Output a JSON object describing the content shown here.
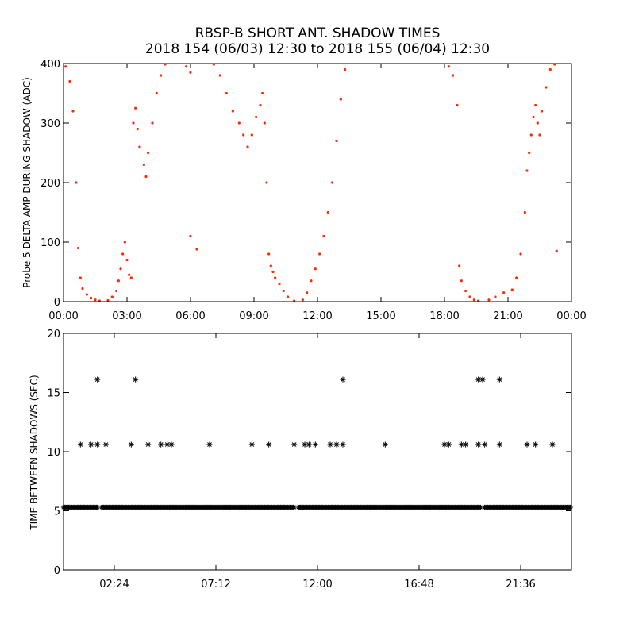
{
  "title": {
    "line1": "RBSP-B SHORT ANT. SHADOW TIMES",
    "line2": "2018 154 (06/03) 12:30 to 2018 155 (06/04) 12:30"
  },
  "colors": {
    "top_points": "#ff2a00",
    "bottom_points": "#000000",
    "axes": "#000000"
  },
  "chart_data": [
    {
      "type": "scatter",
      "title": "",
      "xlabel": "",
      "ylabel": "Probe 5 DELTA AMP DURING SHADOW (ADC)",
      "x_unit": "hours",
      "xlim": [
        0,
        24
      ],
      "ylim": [
        0,
        400
      ],
      "x_ticks": [
        0,
        3,
        6,
        9,
        12,
        15,
        18,
        21,
        24
      ],
      "x_tick_labels": [
        "00:00",
        "03:00",
        "06:00",
        "09:00",
        "12:00",
        "15:00",
        "18:00",
        "21:00",
        "00:00"
      ],
      "y_ticks": [
        0,
        100,
        200,
        300,
        400
      ],
      "y_tick_labels": [
        "0",
        "100",
        "200",
        "300",
        "400"
      ],
      "grid": false,
      "legend": "none",
      "series": [
        {
          "values": [
            [
              0.1,
              395
            ],
            [
              0.3,
              370
            ],
            [
              0.45,
              320
            ],
            [
              0.6,
              200
            ],
            [
              0.7,
              90
            ],
            [
              0.8,
              40
            ],
            [
              0.9,
              22
            ],
            [
              1.1,
              12
            ],
            [
              1.3,
              6
            ],
            [
              1.5,
              3
            ],
            [
              1.7,
              1
            ],
            [
              2.1,
              2
            ],
            [
              2.3,
              8
            ],
            [
              2.5,
              18
            ],
            [
              2.6,
              35
            ],
            [
              2.7,
              55
            ],
            [
              2.8,
              80
            ],
            [
              2.9,
              100
            ],
            [
              3.0,
              70
            ],
            [
              3.1,
              45
            ],
            [
              3.2,
              40
            ],
            [
              3.3,
              300
            ],
            [
              3.4,
              325
            ],
            [
              3.5,
              290
            ],
            [
              3.6,
              260
            ],
            [
              3.8,
              230
            ],
            [
              3.9,
              210
            ],
            [
              4.0,
              250
            ],
            [
              4.2,
              300
            ],
            [
              4.4,
              350
            ],
            [
              4.6,
              380
            ],
            [
              4.8,
              400
            ],
            [
              5.8,
              395
            ],
            [
              6.0,
              385
            ],
            [
              6.0,
              110
            ],
            [
              6.3,
              88
            ],
            [
              7.1,
              400
            ],
            [
              7.4,
              380
            ],
            [
              7.7,
              350
            ],
            [
              8.0,
              320
            ],
            [
              8.3,
              300
            ],
            [
              8.5,
              280
            ],
            [
              8.7,
              260
            ],
            [
              8.9,
              280
            ],
            [
              9.1,
              310
            ],
            [
              9.3,
              330
            ],
            [
              9.4,
              350
            ],
            [
              9.5,
              300
            ],
            [
              9.6,
              200
            ],
            [
              9.7,
              80
            ],
            [
              9.8,
              60
            ],
            [
              9.9,
              50
            ],
            [
              10.0,
              40
            ],
            [
              10.2,
              30
            ],
            [
              10.4,
              18
            ],
            [
              10.6,
              8
            ],
            [
              10.9,
              1
            ],
            [
              11.3,
              3
            ],
            [
              11.5,
              15
            ],
            [
              11.7,
              35
            ],
            [
              11.9,
              55
            ],
            [
              12.1,
              80
            ],
            [
              12.3,
              110
            ],
            [
              12.5,
              150
            ],
            [
              12.7,
              200
            ],
            [
              12.9,
              270
            ],
            [
              13.1,
              340
            ],
            [
              13.3,
              390
            ],
            [
              18.2,
              395
            ],
            [
              18.4,
              380
            ],
            [
              18.6,
              330
            ],
            [
              18.7,
              60
            ],
            [
              18.8,
              35
            ],
            [
              19.0,
              18
            ],
            [
              19.2,
              8
            ],
            [
              19.4,
              3
            ],
            [
              19.6,
              0
            ],
            [
              20.1,
              3
            ],
            [
              20.4,
              8
            ],
            [
              20.8,
              15
            ],
            [
              21.2,
              20
            ],
            [
              21.4,
              40
            ],
            [
              21.6,
              80
            ],
            [
              21.8,
              150
            ],
            [
              21.9,
              220
            ],
            [
              22.0,
              250
            ],
            [
              22.1,
              280
            ],
            [
              22.2,
              310
            ],
            [
              22.3,
              330
            ],
            [
              22.4,
              300
            ],
            [
              22.5,
              280
            ],
            [
              22.6,
              320
            ],
            [
              22.8,
              360
            ],
            [
              23.0,
              390
            ],
            [
              23.2,
              400
            ],
            [
              23.3,
              85
            ]
          ]
        }
      ]
    },
    {
      "type": "scatter",
      "title": "",
      "xlabel": "",
      "ylabel": "TIME BETWEEN SHADOWS (SEC)",
      "x_unit": "hours",
      "xlim": [
        0,
        24
      ],
      "ylim": [
        0,
        20
      ],
      "x_ticks": [
        2.4,
        7.2,
        12.0,
        16.8,
        21.6
      ],
      "x_tick_labels": [
        "02:24",
        "07:12",
        "12:00",
        "16:48",
        "21:36"
      ],
      "y_ticks": [
        0,
        5,
        10,
        15,
        20
      ],
      "y_tick_labels": [
        "0",
        "5",
        "10",
        "15",
        "20"
      ],
      "grid": false,
      "legend": "none",
      "marker": "asterisk",
      "baseline": {
        "y": 5.3,
        "x_start": 0,
        "x_end": 24,
        "gaps": [
          1.7,
          11.0,
          19.8
        ]
      },
      "series": [
        {
          "values": [
            [
              0.8,
              10.6
            ],
            [
              1.3,
              10.6
            ],
            [
              1.6,
              10.6
            ],
            [
              2.0,
              10.6
            ],
            [
              3.2,
              10.6
            ],
            [
              4.0,
              10.6
            ],
            [
              4.6,
              10.6
            ],
            [
              4.9,
              10.6
            ],
            [
              5.1,
              10.6
            ],
            [
              6.9,
              10.6
            ],
            [
              8.9,
              10.6
            ],
            [
              9.7,
              10.6
            ],
            [
              10.9,
              10.6
            ],
            [
              11.4,
              10.6
            ],
            [
              11.6,
              10.6
            ],
            [
              11.9,
              10.6
            ],
            [
              12.6,
              10.6
            ],
            [
              12.9,
              10.6
            ],
            [
              13.2,
              10.6
            ],
            [
              15.2,
              10.6
            ],
            [
              18.0,
              10.6
            ],
            [
              18.2,
              10.6
            ],
            [
              18.8,
              10.6
            ],
            [
              19.0,
              10.6
            ],
            [
              19.6,
              10.6
            ],
            [
              19.9,
              10.6
            ],
            [
              20.6,
              10.6
            ],
            [
              21.9,
              10.6
            ],
            [
              22.3,
              10.6
            ],
            [
              23.1,
              10.6
            ],
            [
              1.6,
              16.1
            ],
            [
              3.4,
              16.1
            ],
            [
              13.2,
              16.1
            ],
            [
              19.6,
              16.1
            ],
            [
              19.8,
              16.1
            ],
            [
              20.6,
              16.1
            ]
          ]
        }
      ]
    }
  ]
}
